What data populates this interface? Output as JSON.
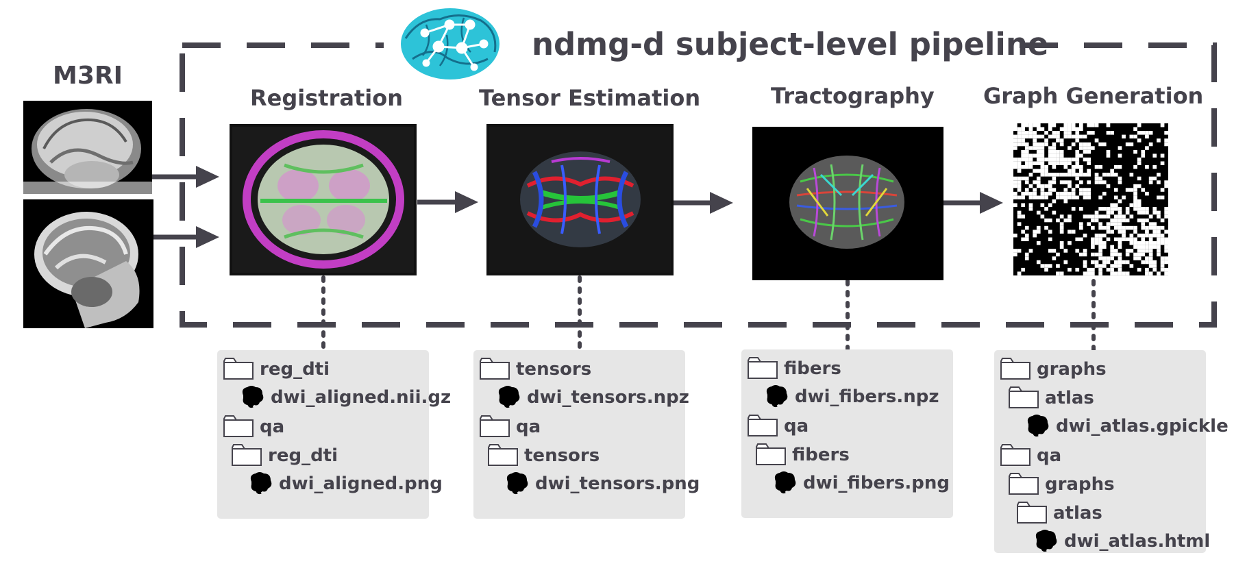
{
  "title": "ndmg-d subject-level pipeline",
  "input_label": "M3RI",
  "colors": {
    "text": "#45434c",
    "dash_frame": "#45434c",
    "arrow": "#45434c",
    "panel_bg": "#e6e6e6",
    "logo_fill": "#2dc3d8",
    "image_bg": "#000000"
  },
  "stages": [
    {
      "name": "Registration",
      "files": [
        {
          "type": "folder",
          "depth": 0,
          "name": "reg_dti"
        },
        {
          "type": "file-brain-icon",
          "depth": 1,
          "name": "dwi_aligned.nii.gz"
        },
        {
          "type": "folder",
          "depth": 0,
          "name": "qa"
        },
        {
          "type": "folder",
          "depth": 1,
          "name": "reg_dti"
        },
        {
          "type": "file-brain-icon",
          "depth": 2,
          "name": "dwi_aligned.png"
        }
      ]
    },
    {
      "name": "Tensor Estimation",
      "files": [
        {
          "type": "folder",
          "depth": 0,
          "name": "tensors"
        },
        {
          "type": "file-brain-icon",
          "depth": 1,
          "name": "dwi_tensors.npz"
        },
        {
          "type": "folder",
          "depth": 0,
          "name": "qa"
        },
        {
          "type": "folder",
          "depth": 1,
          "name": "tensors"
        },
        {
          "type": "file-brain-icon",
          "depth": 2,
          "name": "dwi_tensors.png"
        }
      ]
    },
    {
      "name": "Tractography",
      "files": [
        {
          "type": "folder",
          "depth": 0,
          "name": "fibers"
        },
        {
          "type": "file-brain-icon",
          "depth": 1,
          "name": "dwi_fibers.npz"
        },
        {
          "type": "folder",
          "depth": 0,
          "name": "qa"
        },
        {
          "type": "folder",
          "depth": 1,
          "name": "fibers"
        },
        {
          "type": "file-brain-icon",
          "depth": 2,
          "name": "dwi_fibers.png"
        }
      ]
    },
    {
      "name": "Graph Generation",
      "files": [
        {
          "type": "folder",
          "depth": 0,
          "name": "graphs"
        },
        {
          "type": "folder",
          "depth": 1,
          "name": "atlas"
        },
        {
          "type": "file-brain-icon",
          "depth": 2,
          "name": "dwi_atlas.gpickle"
        },
        {
          "type": "folder",
          "depth": 0,
          "name": "qa"
        },
        {
          "type": "folder",
          "depth": 1,
          "name": "graphs"
        },
        {
          "type": "folder",
          "depth": 2,
          "name": "atlas"
        },
        {
          "type": "file-brain-icon",
          "depth": 3,
          "name": "dwi_atlas.html"
        }
      ]
    }
  ]
}
